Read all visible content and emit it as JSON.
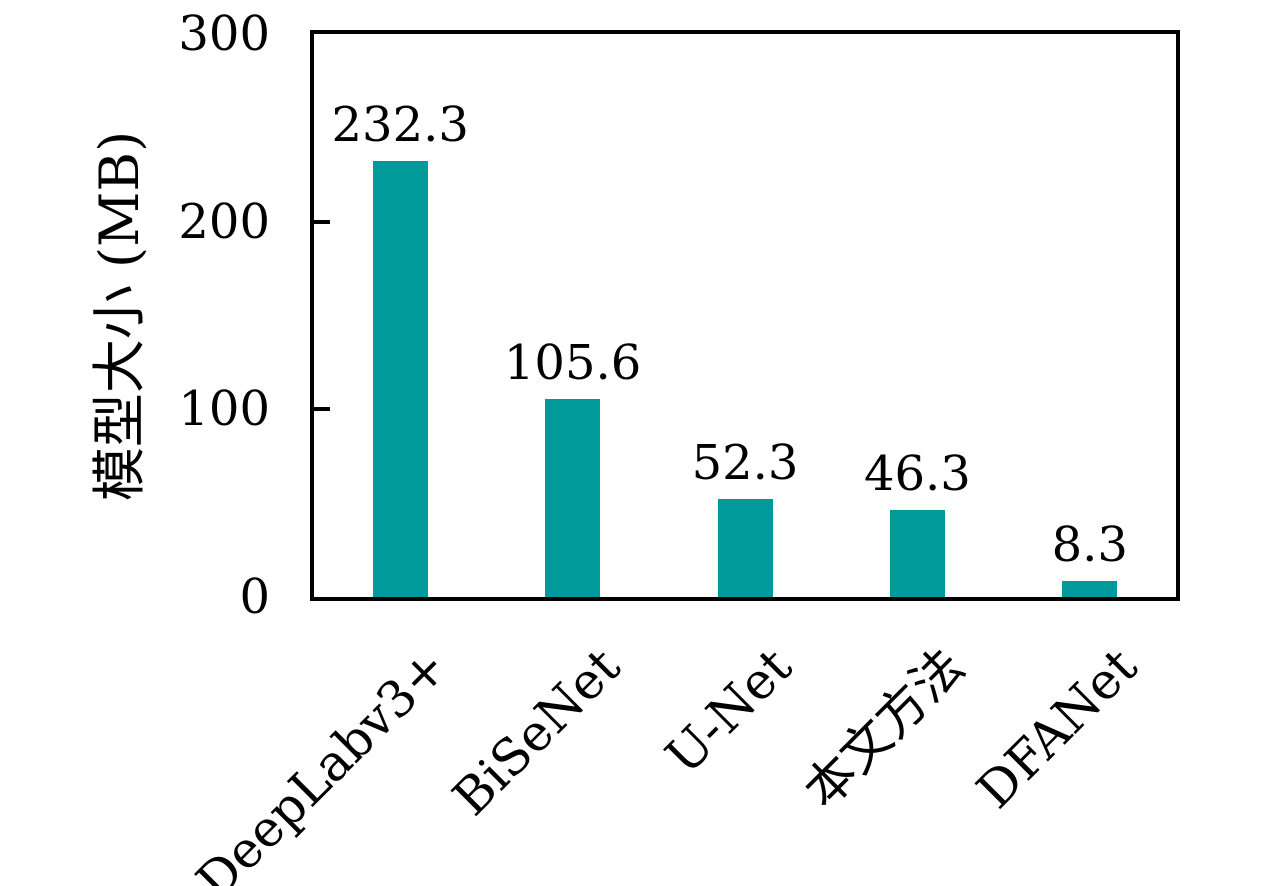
{
  "chart_data": {
    "type": "bar",
    "categories": [
      "DeepLabv3+",
      "BiSeNet",
      "U-Net",
      "本文方法",
      "DFANet"
    ],
    "values": [
      232.3,
      105.6,
      52.3,
      46.3,
      8.3
    ],
    "value_labels": [
      "232.3",
      "105.6",
      "52.3",
      "46.3",
      "8.3"
    ],
    "title": "",
    "xlabel": "",
    "ylabel": "模型大小 (MB)",
    "ylim": [
      0,
      300
    ],
    "yticks": [
      0,
      100,
      200,
      300
    ],
    "ytick_labels": [
      "0",
      "100",
      "200",
      "300"
    ],
    "x_tick_rotation_deg": 45,
    "grid": false,
    "legend_position": "none",
    "bar_color": "#009A9A",
    "axis_color": "#000000",
    "text_color": "#000000",
    "background_color": "#FFFFFF"
  }
}
